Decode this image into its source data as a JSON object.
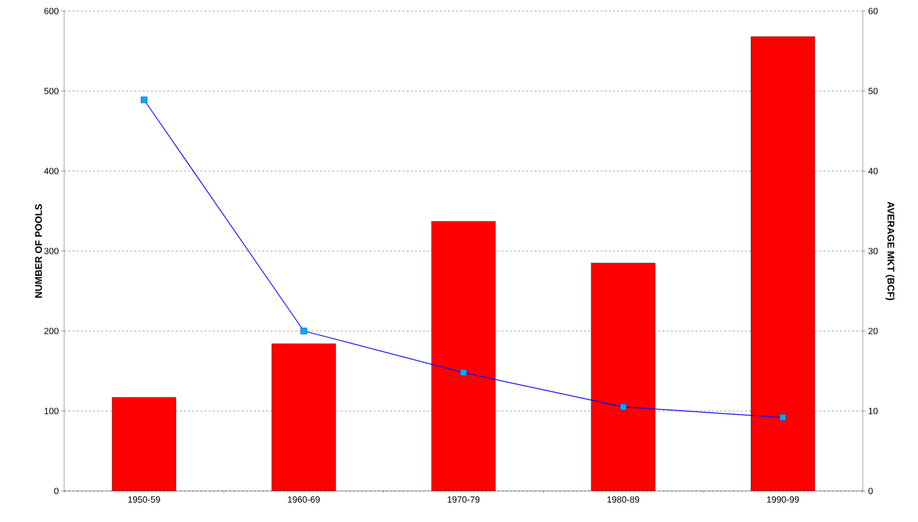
{
  "chart_data": {
    "type": "bar",
    "categories": [
      "1950-59",
      "1960-69",
      "1970-79",
      "1980-89",
      "1990-99"
    ],
    "ylabel": "NUMBER OF POOLS",
    "y2label": "AVERAGE MKT (BCF)",
    "ylim": [
      0,
      600
    ],
    "yticks": [
      0,
      100,
      200,
      300,
      400,
      500,
      600
    ],
    "y2lim": [
      0,
      60
    ],
    "y2ticks": [
      0,
      10,
      20,
      30,
      40,
      50,
      60
    ],
    "grid": "y",
    "marker": "square",
    "series": [
      {
        "color": "#ff0000",
        "values": [
          117,
          184,
          337,
          285,
          568
        ]
      },
      {
        "type": "line",
        "axis": "y2",
        "color": "#0000ff",
        "values": [
          48.9,
          20,
          14.8,
          10.5,
          9.2
        ]
      }
    ]
  }
}
